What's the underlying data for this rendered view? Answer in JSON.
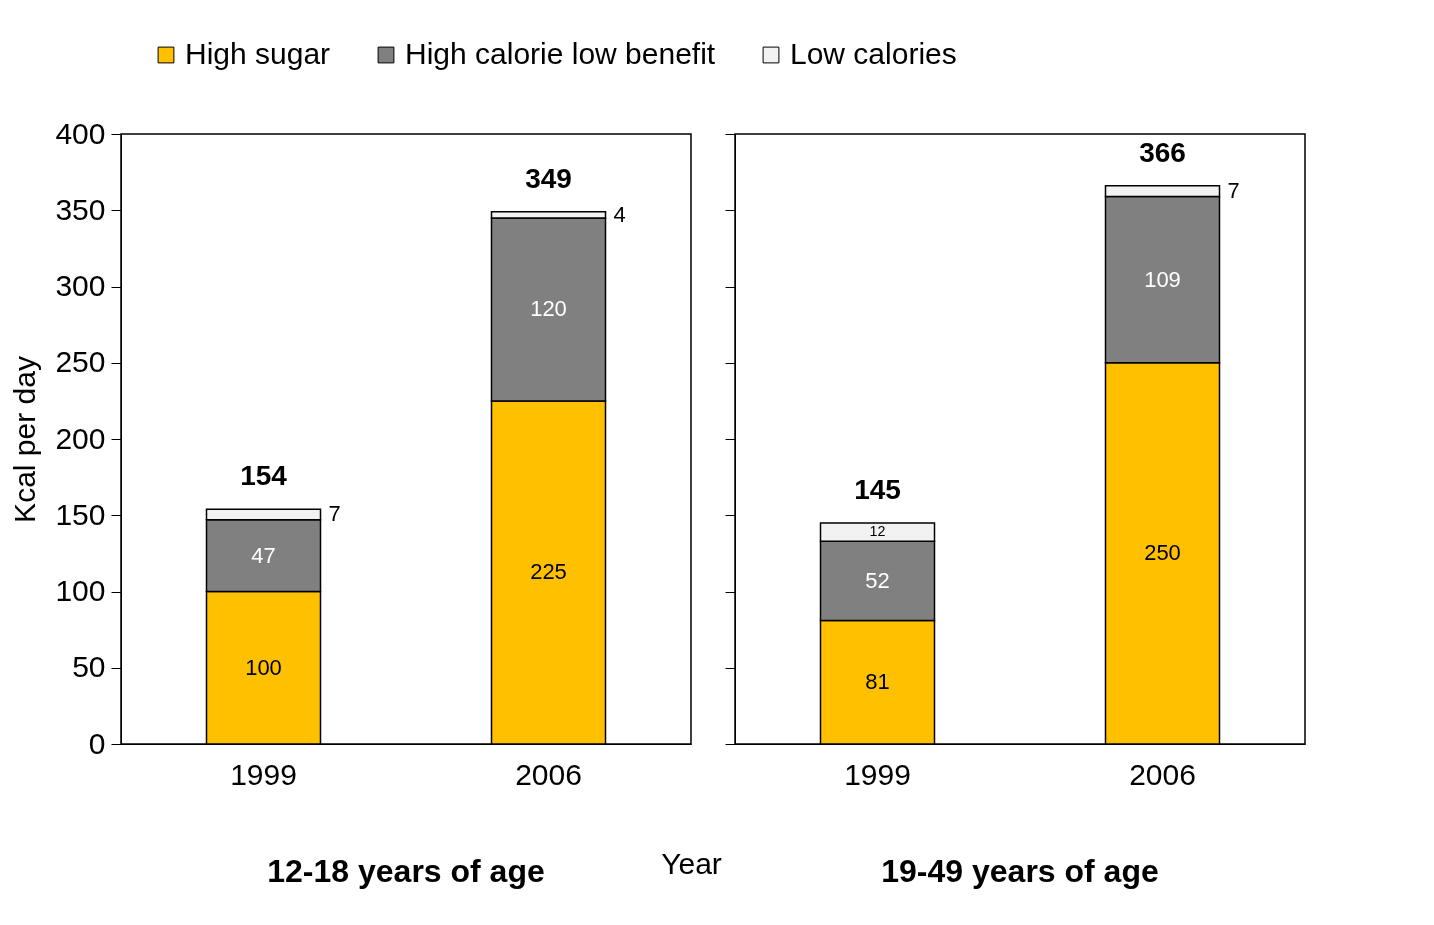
{
  "chart_data": [
    {
      "type": "bar",
      "stacked": true,
      "categories": [
        "1999",
        "2006"
      ],
      "xlabel": "Year",
      "ylabel": "Kcal per day",
      "annotations": [
        "12-18 years of age"
      ],
      "ylim": [
        0,
        400
      ],
      "yticks": [
        0,
        50,
        100,
        150,
        200,
        250,
        300,
        350,
        400
      ],
      "grid": false,
      "legend": "top",
      "data_labels": true,
      "totals": [
        "154",
        "349"
      ],
      "series": [
        {
          "name": "High sugar",
          "color": "#ffc000",
          "values": [
            100,
            225
          ]
        },
        {
          "name": "High calorie low benefit",
          "color": "#808080",
          "values": [
            47,
            120
          ]
        },
        {
          "name": "Low calories",
          "color": "#f2f2f2",
          "values": [
            7,
            4
          ]
        }
      ]
    },
    {
      "type": "bar",
      "stacked": true,
      "categories": [
        "1999",
        "2006"
      ],
      "annotations": [
        "19-49 years of age"
      ],
      "ylim": [
        0,
        400
      ],
      "yticks": [
        0,
        50,
        100,
        150,
        200,
        250,
        300,
        350,
        400
      ],
      "grid": false,
      "tick_labels": "x",
      "data_labels": true,
      "totals": [
        "145",
        "366"
      ],
      "series": [
        {
          "name": "High sugar",
          "color": "#ffc000",
          "values": [
            81,
            250
          ]
        },
        {
          "name": "High calorie low benefit",
          "color": "#808080",
          "values": [
            52,
            109
          ]
        },
        {
          "name": "Low calories",
          "color": "#f2f2f2",
          "values": [
            12,
            7
          ]
        }
      ]
    }
  ]
}
